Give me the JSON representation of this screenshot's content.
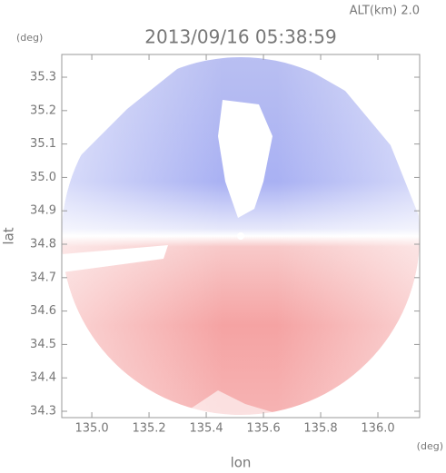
{
  "chart_data": {
    "type": "radar-ppi",
    "title": "2013/09/16 05:38:59",
    "annotation": "ALT(km) 2.0",
    "x_label": "lon",
    "y_label": "lat",
    "x_unit": "(deg)",
    "y_unit": "(deg)",
    "xlim": [
      134.895,
      136.146
    ],
    "ylim": [
      34.281,
      35.368
    ],
    "xticks": [
      {
        "value": 135,
        "label": "135.0"
      },
      135.2,
      135.4,
      135.6,
      135.8,
      {
        "value": 136,
        "label": "136.0"
      }
    ],
    "yticks": [
      34.3,
      34.4,
      34.5,
      34.6,
      34.7,
      34.8,
      34.9,
      {
        "value": 35,
        "label": "35.0"
      },
      35.1,
      35.2,
      35.3
    ]
  }
}
